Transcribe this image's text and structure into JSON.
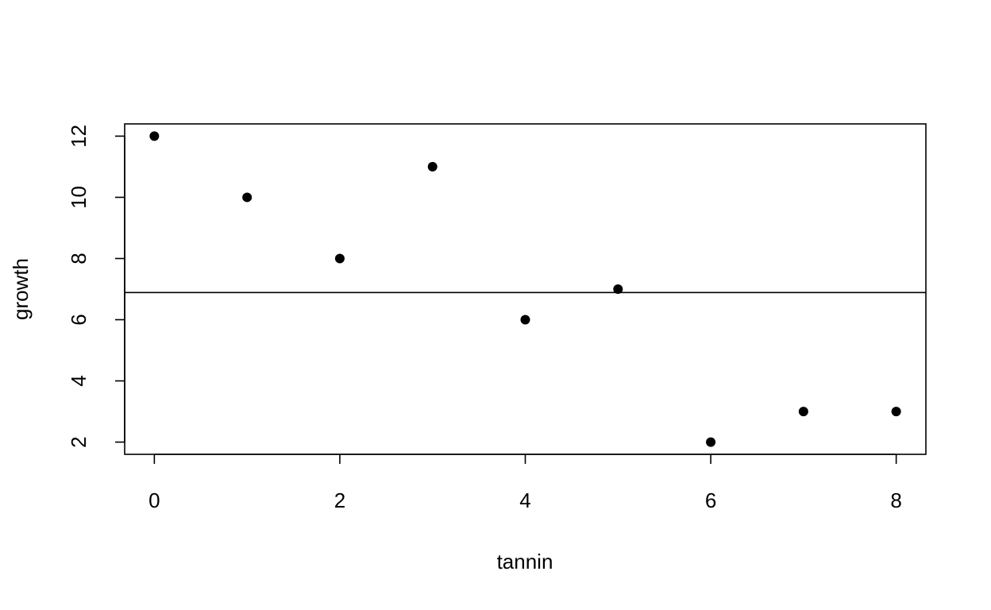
{
  "chart_data": {
    "type": "scatter",
    "x_label": "tannin",
    "y_label": "growth",
    "x": [
      0,
      1,
      2,
      3,
      4,
      5,
      6,
      7,
      8
    ],
    "values": [
      12,
      10,
      8,
      11,
      6,
      7,
      2,
      3,
      3
    ],
    "color": "#000000",
    "hline": 6.889,
    "xlim": [
      -0.32,
      8.32
    ],
    "xticks": [
      0,
      2,
      4,
      6,
      8
    ],
    "ylim": [
      1.6,
      12.4
    ],
    "yticks": [
      2,
      4,
      6,
      8,
      10,
      12
    ],
    "grid": false
  }
}
